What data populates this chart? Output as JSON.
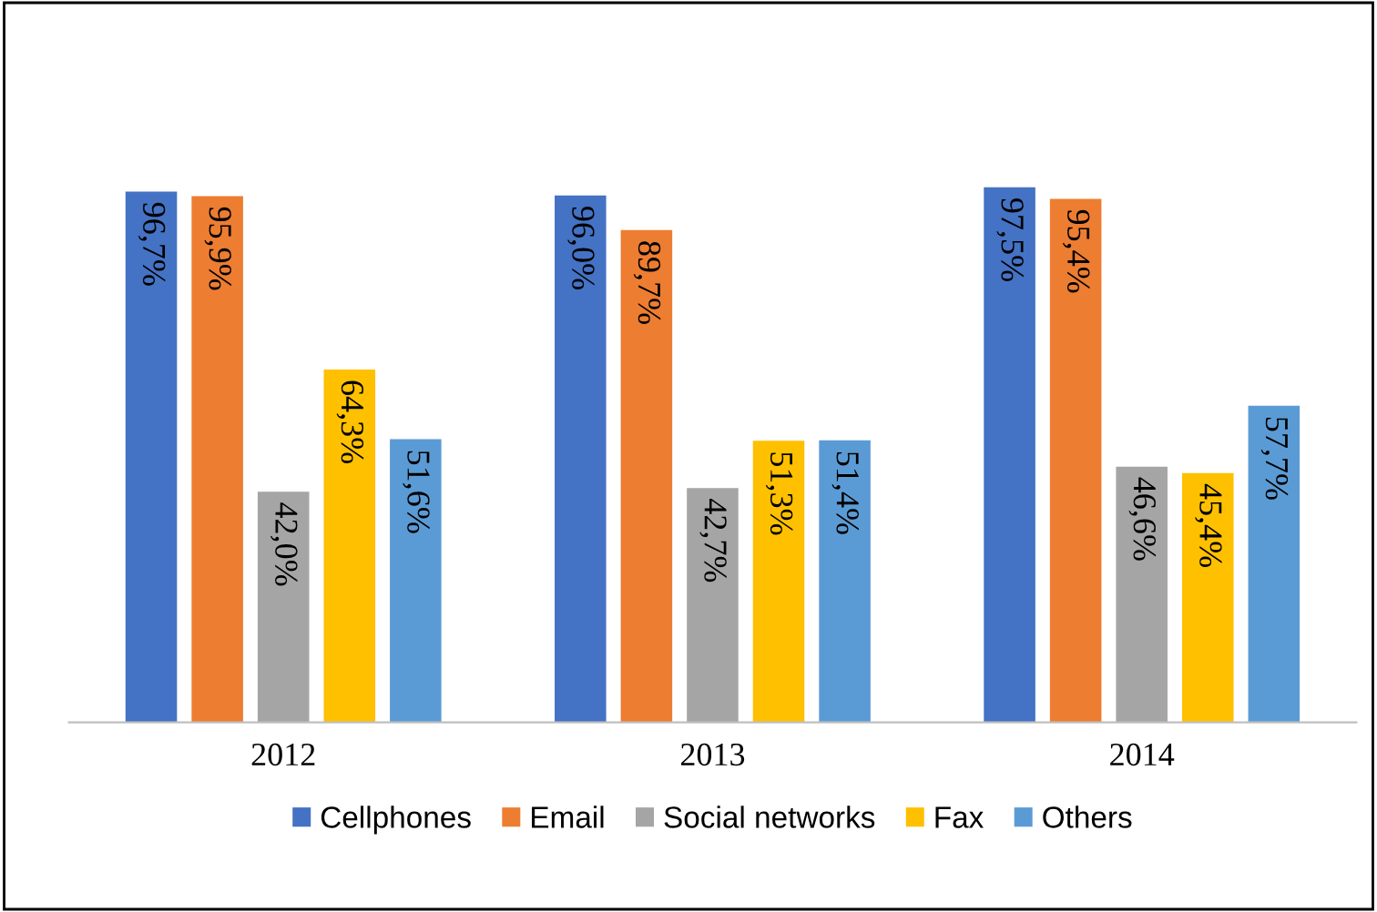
{
  "chart_data": {
    "type": "bar",
    "categories": [
      "2012",
      "2013",
      "2014"
    ],
    "series": [
      {
        "name": "Cellphones",
        "color": "#4472c4",
        "values": [
          96.7,
          96.0,
          97.5
        ],
        "value_labels": [
          "96,7%",
          "96,0%",
          "97,5%"
        ]
      },
      {
        "name": "Email",
        "color": "#ed7d31",
        "values": [
          95.9,
          89.7,
          95.4
        ],
        "value_labels": [
          "95,9%",
          "89,7%",
          "95,4%"
        ]
      },
      {
        "name": "Social networks",
        "color": "#a5a5a5",
        "values": [
          42.0,
          42.7,
          46.6
        ],
        "value_labels": [
          "42,0%",
          "42,7%",
          "46,6%"
        ]
      },
      {
        "name": "Fax",
        "color": "#ffc000",
        "values": [
          64.3,
          51.3,
          45.4
        ],
        "value_labels": [
          "64,3%",
          "51,3%",
          "45,4%"
        ]
      },
      {
        "name": "Others",
        "color": "#5b9bd5",
        "values": [
          51.6,
          51.4,
          57.7
        ],
        "value_labels": [
          "51,6%",
          "51,4%",
          "57,7%"
        ]
      }
    ],
    "legend": "bottom",
    "grid": false
  }
}
